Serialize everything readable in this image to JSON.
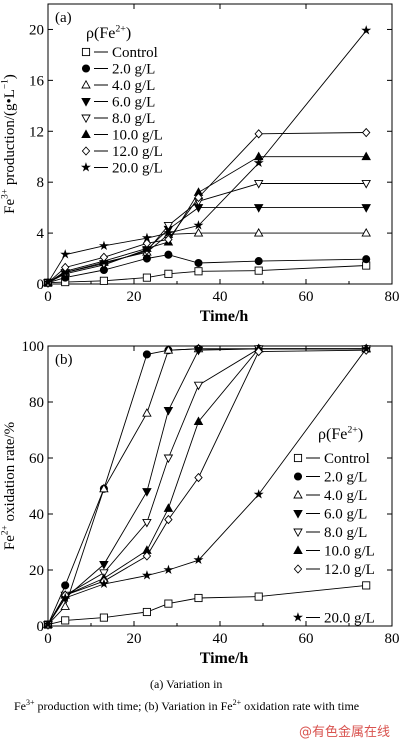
{
  "chart_data": [
    {
      "type": "line",
      "panel_label": "(a)",
      "xlabel": "Time/h",
      "ylabel_parts": [
        "Fe",
        "3+",
        " production/(g•L",
        "−1",
        ")"
      ],
      "xlim": [
        0,
        80
      ],
      "ylim": [
        0,
        22
      ],
      "xticks": [
        0,
        20,
        40,
        60,
        80
      ],
      "yticks": [
        0,
        4,
        8,
        12,
        16,
        20
      ],
      "legend_title_parts": [
        "ρ(Fe",
        "2+",
        ")"
      ],
      "legend_position": "top-left",
      "series": [
        {
          "name": "Control",
          "marker": "square-open",
          "points": [
            [
              0,
              0.1
            ],
            [
              4,
              0.15
            ],
            [
              13,
              0.25
            ],
            [
              23,
              0.5
            ],
            [
              28,
              0.8
            ],
            [
              35,
              1.0
            ],
            [
              49,
              1.05
            ],
            [
              74,
              1.45
            ]
          ]
        },
        {
          "name": "2.0 g/L",
          "marker": "circle-filled",
          "points": [
            [
              0,
              0.1
            ],
            [
              4,
              0.5
            ],
            [
              13,
              1.1
            ],
            [
              23,
              2.0
            ],
            [
              28,
              2.3
            ],
            [
              35,
              1.65
            ],
            [
              49,
              1.8
            ],
            [
              74,
              1.95
            ]
          ]
        },
        {
          "name": "4.0 g/L",
          "marker": "triangle-up-open",
          "points": [
            [
              0,
              0.1
            ],
            [
              4,
              0.9
            ],
            [
              13,
              1.7
            ],
            [
              23,
              2.5
            ],
            [
              28,
              3.9
            ],
            [
              35,
              4.0
            ],
            [
              49,
              4.0
            ],
            [
              74,
              4.0
            ]
          ]
        },
        {
          "name": "6.0 g/L",
          "marker": "triangle-down-filled",
          "points": [
            [
              0,
              0.1
            ],
            [
              4,
              0.8
            ],
            [
              13,
              1.5
            ],
            [
              23,
              2.7
            ],
            [
              28,
              4.3
            ],
            [
              35,
              6.0
            ],
            [
              49,
              6.0
            ],
            [
              74,
              6.0
            ]
          ]
        },
        {
          "name": "8.0 g/L",
          "marker": "triangle-down-open",
          "points": [
            [
              0,
              0.1
            ],
            [
              4,
              0.9
            ],
            [
              13,
              1.6
            ],
            [
              23,
              2.6
            ],
            [
              28,
              4.6
            ],
            [
              35,
              6.5
            ],
            [
              49,
              7.9
            ],
            [
              74,
              7.9
            ]
          ]
        },
        {
          "name": "10.0 g/L",
          "marker": "triangle-up-filled",
          "points": [
            [
              0,
              0.1
            ],
            [
              4,
              1.0
            ],
            [
              13,
              1.8
            ],
            [
              23,
              2.8
            ],
            [
              28,
              3.3
            ],
            [
              35,
              7.2
            ],
            [
              49,
              10.0
            ],
            [
              74,
              10.0
            ]
          ]
        },
        {
          "name": "12.0 g/L",
          "marker": "diamond-open",
          "points": [
            [
              0,
              0.1
            ],
            [
              4,
              1.3
            ],
            [
              13,
              2.1
            ],
            [
              23,
              3.2
            ],
            [
              28,
              3.5
            ],
            [
              35,
              6.8
            ],
            [
              49,
              11.8
            ],
            [
              74,
              11.9
            ]
          ]
        },
        {
          "name": "20.0 g/L",
          "marker": "star",
          "points": [
            [
              0,
              0.1
            ],
            [
              4,
              2.3
            ],
            [
              13,
              3.0
            ],
            [
              23,
              3.6
            ],
            [
              28,
              4.0
            ],
            [
              35,
              4.6
            ],
            [
              49,
              9.5
            ],
            [
              74,
              19.9
            ]
          ]
        }
      ]
    },
    {
      "type": "line",
      "panel_label": "(b)",
      "xlabel": "Time/h",
      "ylabel_parts": [
        "Fe",
        "2+",
        " oxidation rate/%"
      ],
      "xlim": [
        0,
        80
      ],
      "ylim": [
        0,
        100
      ],
      "xticks": [
        0,
        20,
        40,
        60,
        80
      ],
      "yticks": [
        0,
        20,
        40,
        60,
        80,
        100
      ],
      "legend_title_parts": [
        "ρ(Fe",
        "2+",
        ")"
      ],
      "legend_position": "bottom-right",
      "series": [
        {
          "name": "Control",
          "marker": "square-open",
          "points": [
            [
              0,
              0.5
            ],
            [
              4,
              2
            ],
            [
              13,
              3
            ],
            [
              23,
              5
            ],
            [
              28,
              8
            ],
            [
              35,
              10
            ],
            [
              49,
              10.5
            ],
            [
              74,
              14.5
            ]
          ]
        },
        {
          "name": "2.0 g/L",
          "marker": "circle-filled",
          "points": [
            [
              0,
              0.5
            ],
            [
              4,
              14.5
            ],
            [
              13,
              49
            ],
            [
              23,
              97
            ],
            [
              28,
              98.5
            ],
            [
              35,
              99
            ],
            [
              49,
              99
            ],
            [
              74,
              99
            ]
          ]
        },
        {
          "name": "4.0 g/L",
          "marker": "triangle-up-open",
          "points": [
            [
              0,
              0.5
            ],
            [
              4,
              7
            ],
            [
              13,
              49
            ],
            [
              23,
              76
            ],
            [
              28,
              98.5
            ],
            [
              35,
              99
            ],
            [
              49,
              99
            ],
            [
              74,
              99
            ]
          ]
        },
        {
          "name": "6.0 g/L",
          "marker": "triangle-down-filled",
          "points": [
            [
              0,
              0.5
            ],
            [
              4,
              10
            ],
            [
              13,
              22
            ],
            [
              23,
              48
            ],
            [
              28,
              77
            ],
            [
              35,
              98.5
            ],
            [
              49,
              99
            ],
            [
              74,
              99
            ]
          ]
        },
        {
          "name": "8.0 g/L",
          "marker": "triangle-down-open",
          "points": [
            [
              0,
              0.5
            ],
            [
              4,
              11
            ],
            [
              13,
              19
            ],
            [
              23,
              37
            ],
            [
              28,
              60
            ],
            [
              35,
              86
            ],
            [
              49,
              99
            ],
            [
              74,
              99
            ]
          ]
        },
        {
          "name": "10.0 g/L",
          "marker": "triangle-up-filled",
          "points": [
            [
              0,
              0.5
            ],
            [
              4,
              11
            ],
            [
              13,
              17
            ],
            [
              23,
              27
            ],
            [
              28,
              42
            ],
            [
              35,
              73
            ],
            [
              49,
              99
            ],
            [
              74,
              99
            ]
          ]
        },
        {
          "name": "12.0 g/L",
          "marker": "diamond-open",
          "points": [
            [
              0,
              0.5
            ],
            [
              4,
              11
            ],
            [
              13,
              16
            ],
            [
              23,
              25
            ],
            [
              28,
              38
            ],
            [
              35,
              53
            ],
            [
              49,
              98
            ],
            [
              74,
              98.5
            ]
          ]
        },
        {
          "name": "20.0 g/L",
          "marker": "star",
          "points": [
            [
              0,
              0.5
            ],
            [
              4,
              10
            ],
            [
              13,
              15
            ],
            [
              23,
              18
            ],
            [
              28,
              20
            ],
            [
              35,
              23.5
            ],
            [
              49,
              47
            ],
            [
              74,
              99
            ]
          ]
        }
      ]
    }
  ],
  "caption": {
    "subtitle": "(a) Variation in",
    "line_parts": [
      "Fe",
      "3+",
      " production with time; (b) Variation in Fe",
      "2+",
      " oxidation rate with time"
    ]
  },
  "watermark": "@有色金属在线"
}
